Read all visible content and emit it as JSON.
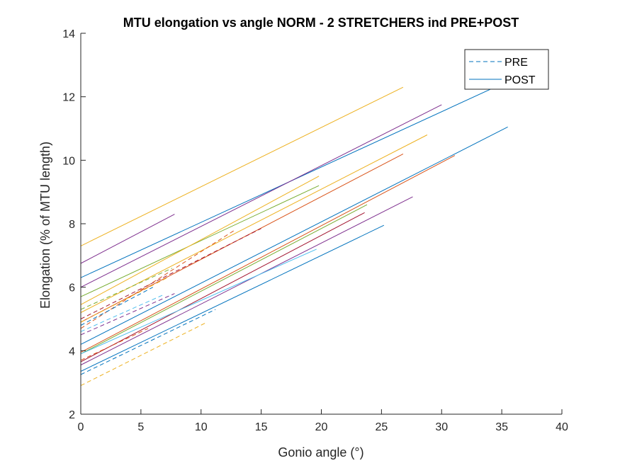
{
  "chart_data": {
    "type": "line",
    "title": "MTU elongation vs angle NORM - 2 STRETCHERS ind PRE+POST",
    "xlabel": "Gonio angle (°)",
    "ylabel": "Elongation (% of MTU length)",
    "xlim": [
      0,
      40
    ],
    "ylim": [
      2,
      14
    ],
    "xticks": [
      0,
      5,
      10,
      15,
      20,
      25,
      30,
      35,
      40
    ],
    "yticks": [
      2,
      4,
      6,
      8,
      10,
      12,
      14
    ],
    "grid": false,
    "legend": {
      "placement": "top-right",
      "entries": [
        {
          "label": "PRE",
          "style": "dashed",
          "color": "#0072BD"
        },
        {
          "label": "POST",
          "style": "solid",
          "color": "#0072BD"
        }
      ]
    },
    "series": [
      {
        "style": "solid",
        "color": "#EDB120",
        "x": [
          0,
          26.8
        ],
        "y": [
          7.3,
          12.3
        ]
      },
      {
        "style": "solid",
        "color": "#0072BD",
        "x": [
          0,
          35.0
        ],
        "y": [
          6.3,
          12.4
        ]
      },
      {
        "style": "solid",
        "color": "#7E2F8E",
        "x": [
          0,
          7.8
        ],
        "y": [
          6.75,
          8.3
        ]
      },
      {
        "style": "solid",
        "color": "#7E2F8E",
        "x": [
          0,
          30.0
        ],
        "y": [
          6.0,
          11.75
        ]
      },
      {
        "style": "solid",
        "color": "#EDB120",
        "x": [
          0,
          28.8
        ],
        "y": [
          5.2,
          10.8
        ]
      },
      {
        "style": "solid",
        "color": "#D95319",
        "x": [
          0,
          26.8
        ],
        "y": [
          4.9,
          10.2
        ]
      },
      {
        "style": "solid",
        "color": "#0072BD",
        "x": [
          0,
          35.5
        ],
        "y": [
          4.2,
          11.05
        ]
      },
      {
        "style": "solid",
        "color": "#D95319",
        "x": [
          0,
          31.1
        ],
        "y": [
          3.95,
          10.15
        ]
      },
      {
        "style": "solid",
        "color": "#77AC30",
        "x": [
          0,
          23.8
        ],
        "y": [
          3.9,
          8.6
        ]
      },
      {
        "style": "solid",
        "color": "#A2142F",
        "x": [
          0,
          23.6
        ],
        "y": [
          3.65,
          8.35
        ]
      },
      {
        "style": "solid",
        "color": "#7E2F8E",
        "x": [
          0,
          27.6
        ],
        "y": [
          3.55,
          8.85
        ]
      },
      {
        "style": "solid",
        "color": "#4DBEEE",
        "x": [
          0,
          19.6
        ],
        "y": [
          3.9,
          7.2
        ]
      },
      {
        "style": "solid",
        "color": "#0072BD",
        "x": [
          0,
          25.2
        ],
        "y": [
          3.35,
          7.95
        ]
      },
      {
        "style": "solid",
        "color": "#77AC30",
        "x": [
          0,
          19.8
        ],
        "y": [
          5.7,
          9.2
        ]
      },
      {
        "style": "solid",
        "color": "#EDB120",
        "x": [
          0,
          19.8
        ],
        "y": [
          5.45,
          9.5
        ]
      },
      {
        "style": "dashed",
        "color": "#0072BD",
        "x": [
          0,
          11.2
        ],
        "y": [
          3.25,
          5.3
        ]
      },
      {
        "style": "dashed",
        "color": "#EDB120",
        "x": [
          0,
          10.5
        ],
        "y": [
          2.9,
          4.9
        ]
      },
      {
        "style": "dashed",
        "color": "#A2142F",
        "x": [
          0,
          15.0
        ],
        "y": [
          5.0,
          7.85
        ]
      },
      {
        "style": "dashed",
        "color": "#D95319",
        "x": [
          0,
          12.8
        ],
        "y": [
          4.7,
          7.8
        ]
      },
      {
        "style": "dashed",
        "color": "#77AC30",
        "x": [
          0,
          7.6
        ],
        "y": [
          5.3,
          6.6
        ]
      },
      {
        "style": "dashed",
        "color": "#EDB120",
        "x": [
          0,
          7.2
        ],
        "y": [
          4.9,
          6.3
        ]
      },
      {
        "style": "dashed",
        "color": "#7E2F8E",
        "x": [
          0,
          7.8
        ],
        "y": [
          4.5,
          5.8
        ]
      },
      {
        "style": "dashed",
        "color": "#4DBEEE",
        "x": [
          0,
          6.8
        ],
        "y": [
          4.6,
          5.75
        ]
      },
      {
        "style": "dashed",
        "color": "#0072BD",
        "x": [
          0,
          6.0
        ],
        "y": [
          4.8,
          6.0
        ]
      },
      {
        "style": "dashed",
        "color": "#D95319",
        "x": [
          0,
          5.6
        ],
        "y": [
          3.7,
          4.7
        ]
      }
    ]
  }
}
